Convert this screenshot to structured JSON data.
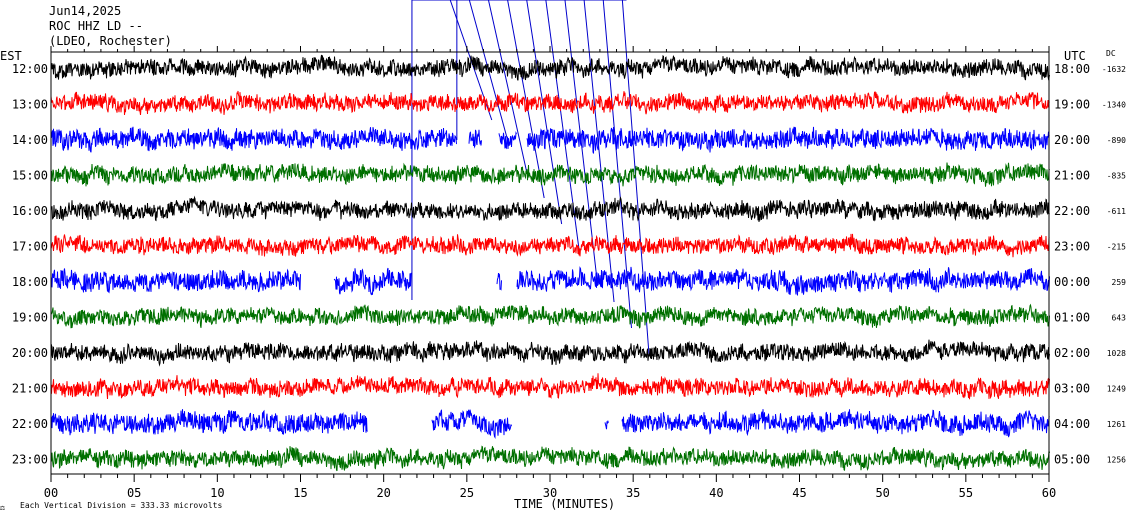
{
  "header": {
    "date": "Jun14,2025",
    "station": "ROC HHZ LD --",
    "network": "(LDEO, Rochester)"
  },
  "left_axis_title": "EST",
  "right_axis_title": "UTC",
  "dc_title": "DC",
  "footer": {
    "scale_note": "Each Vertical Division =  333.33 microvolts"
  },
  "colors": {
    "black": "#000000",
    "red": "#ff0000",
    "blue": "#0000ff",
    "green": "#007000",
    "annotation": "#0000cc"
  },
  "chart_data": {
    "type": "line",
    "xlabel": "TIME (MINUTES)",
    "xlim": [
      0,
      60
    ],
    "x_ticks": [
      "00",
      "05",
      "10",
      "15",
      "20",
      "25",
      "30",
      "35",
      "40",
      "45",
      "50",
      "55",
      "60"
    ],
    "rows": [
      {
        "est": "12:00",
        "utc": "18:00",
        "dc": "-1632",
        "color": "black",
        "gaps": []
      },
      {
        "est": "13:00",
        "utc": "19:00",
        "dc": "-1340",
        "color": "red",
        "gaps": []
      },
      {
        "est": "14:00",
        "utc": "20:00",
        "dc": "-890",
        "color": "blue",
        "gaps": [
          [
            24.4,
            25.1
          ],
          [
            25.9,
            26.9
          ],
          [
            28.0,
            28.6
          ]
        ]
      },
      {
        "est": "15:00",
        "utc": "21:00",
        "dc": "-835",
        "color": "green",
        "gaps": []
      },
      {
        "est": "16:00",
        "utc": "22:00",
        "dc": "-611",
        "color": "black",
        "gaps": []
      },
      {
        "est": "17:00",
        "utc": "23:00",
        "dc": "-215",
        "color": "red",
        "gaps": []
      },
      {
        "est": "18:00",
        "utc": "00:00",
        "dc": "259",
        "color": "blue",
        "gaps": [
          [
            15.0,
            17.0
          ],
          [
            21.7,
            26.8
          ],
          [
            27.1,
            28.0
          ]
        ]
      },
      {
        "est": "19:00",
        "utc": "01:00",
        "dc": "643",
        "color": "green",
        "gaps": []
      },
      {
        "est": "20:00",
        "utc": "02:00",
        "dc": "1028",
        "color": "black",
        "gaps": []
      },
      {
        "est": "21:00",
        "utc": "03:00",
        "dc": "1249",
        "color": "red",
        "gaps": []
      },
      {
        "est": "22:00",
        "utc": "04:00",
        "dc": "1261",
        "color": "blue",
        "gaps": [
          [
            19.0,
            22.9
          ],
          [
            27.7,
            33.3
          ],
          [
            33.5,
            34.3
          ]
        ]
      },
      {
        "est": "23:00",
        "utc": "05:00",
        "dc": "1256",
        "color": "green",
        "gaps": []
      }
    ]
  }
}
